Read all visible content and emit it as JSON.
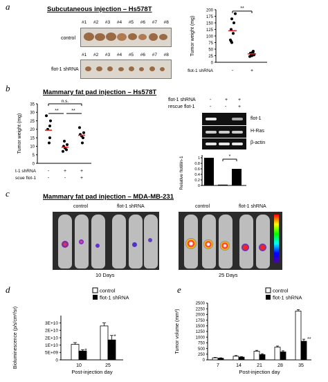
{
  "panel_a": {
    "letter": "a",
    "title": "Subcutaneous injection – Hs578T",
    "tray_numbers": [
      "#1",
      "#2",
      "#3",
      "#4",
      "#5",
      "#6",
      "#7",
      "#8"
    ],
    "row1_label": "control",
    "row2_label": "flot-1 shRNA",
    "chart": {
      "ylabel": "Tumor weight (mg)",
      "yticks": [
        "0",
        "25",
        "50",
        "75",
        "100",
        "125",
        "150",
        "175",
        "200"
      ],
      "xrow_label": "flot-1 shRNA",
      "xmarks": [
        "-",
        "+"
      ],
      "sig": "**"
    }
  },
  "panel_b": {
    "letter": "b",
    "title": "Mammary fat pad injection – Hs578T",
    "chart": {
      "ylabel": "Tumor weight (mg)",
      "yticks": [
        "0",
        "5",
        "10",
        "15",
        "20",
        "25",
        "30",
        "35"
      ],
      "row1_label": "flot-1 shRNA",
      "row2_label": "rescue flot-1",
      "row1_marks": [
        "-",
        "+",
        "+"
      ],
      "row2_marks": [
        "-",
        "-",
        "+"
      ],
      "ns": "n.s.",
      "sig1": "**",
      "sig2": "**"
    },
    "blot": {
      "row1_label": "flot-1 shRNA",
      "row2_label": "rescue flot-1",
      "row1_marks": [
        "-",
        "+",
        "+"
      ],
      "row2_marks": [
        "-",
        "-",
        "+"
      ],
      "bands": [
        "flot-1",
        "H-Ras",
        "β-actin"
      ],
      "ylabel": "Relative flotillin-1",
      "yticks": [
        "0",
        "0.2",
        "0.4",
        "0.6",
        "0.8",
        "1"
      ],
      "sig": "*"
    }
  },
  "panel_c": {
    "letter": "c",
    "title": "Mammary fat pad injection – MDA-MB-231",
    "left_label_control": "control",
    "left_label_shrna": "flot-1 shRNA",
    "right_label_control": "control",
    "right_label_shrna": "flot-1 shRNA",
    "left_caption": "10 Days",
    "right_caption": "25 Days"
  },
  "panel_d": {
    "letter": "d",
    "legend": [
      "control",
      "flot-1 shRNA"
    ],
    "ylabel": "Bioluminescence (p/s/cm²/sr)",
    "yticks": [
      "0",
      "5E+09",
      "1E+10",
      "2E+10",
      "2E+10",
      "3E+10"
    ],
    "xticks": [
      "10",
      "25"
    ],
    "xlabel": "Post-injection day",
    "stars": [
      "*",
      "*"
    ]
  },
  "panel_e": {
    "letter": "e",
    "legend": [
      "control",
      "flot-1 shRNA"
    ],
    "ylabel": "Tumor volume (mm³)",
    "yticks": [
      "0",
      "250",
      "500",
      "750",
      "1000",
      "1250",
      "1500",
      "1750",
      "2000",
      "2250",
      "2500"
    ],
    "xticks": [
      "7",
      "14",
      "21",
      "28",
      "35"
    ],
    "xlabel": "Post-injection day",
    "stars": [
      "**"
    ]
  },
  "chart_data": [
    {
      "type": "scatter",
      "title": "",
      "ylabel": "Tumor weight (mg)",
      "ylim": [
        0,
        200
      ],
      "categories": [
        "-",
        "+"
      ],
      "series": [
        {
          "name": "",
          "points": [
            [
              1,
              185
            ],
            [
              1,
              165
            ],
            [
              1,
              150
            ],
            [
              1,
              125
            ],
            [
              1,
              110
            ],
            [
              1,
              85
            ],
            [
              1,
              80
            ],
            [
              1,
              75
            ],
            [
              2,
              42
            ],
            [
              2,
              38
            ],
            [
              2,
              35
            ],
            [
              2,
              33
            ],
            [
              2,
              30
            ],
            [
              2,
              28
            ],
            [
              2,
              25
            ],
            [
              2,
              22
            ]
          ],
          "means": [
            120,
            32
          ]
        }
      ]
    },
    {
      "type": "scatter",
      "title": "",
      "ylabel": "Tumor weight (mg)",
      "ylim": [
        0,
        35
      ],
      "categories": [
        "1",
        "2",
        "3"
      ],
      "series": [
        {
          "name": "",
          "points": [
            [
              1,
              28
            ],
            [
              1,
              25
            ],
            [
              1,
              22
            ],
            [
              1,
              20
            ],
            [
              1,
              15
            ],
            [
              1,
              12
            ],
            [
              2,
              13
            ],
            [
              2,
              11
            ],
            [
              2,
              10
            ],
            [
              2,
              9
            ],
            [
              2,
              8
            ],
            [
              2,
              7
            ],
            [
              3,
              21
            ],
            [
              3,
              18
            ],
            [
              3,
              17
            ],
            [
              3,
              16
            ],
            [
              3,
              15
            ],
            [
              3,
              12
            ]
          ],
          "means": [
            19.5,
            9.5,
            16.5
          ]
        }
      ]
    },
    {
      "type": "bar",
      "title": "",
      "ylabel": "Relative flotillin-1",
      "ylim": [
        0,
        1.1
      ],
      "categories": [
        "1",
        "2",
        "3"
      ],
      "values": [
        1.0,
        0.03,
        0.6
      ]
    },
    {
      "type": "bar",
      "title": "",
      "ylabel": "Bioluminescence (p/s/cm²/sr)",
      "xlabel": "Post-injection day",
      "ylim": [
        0,
        30000000000
      ],
      "categories": [
        "10",
        "25"
      ],
      "series": [
        {
          "name": "control",
          "values": [
            10500000000,
            23000000000
          ],
          "errors": [
            1200000000,
            2000000000
          ]
        },
        {
          "name": "flot-1 shRNA",
          "values": [
            6000000000,
            13500000000
          ],
          "errors": [
            900000000,
            3000000000
          ]
        }
      ]
    },
    {
      "type": "bar",
      "title": "",
      "ylabel": "Tumor volume (mm³)",
      "xlabel": "Post-injection day",
      "ylim": [
        0,
        2500
      ],
      "categories": [
        "7",
        "14",
        "21",
        "28",
        "35"
      ],
      "series": [
        {
          "name": "control",
          "values": [
            90,
            160,
            380,
            560,
            2150
          ],
          "errors": [
            20,
            30,
            40,
            50,
            60
          ]
        },
        {
          "name": "flot-1 shRNA",
          "values": [
            70,
            120,
            230,
            350,
            820
          ],
          "errors": [
            20,
            25,
            40,
            50,
            90
          ]
        }
      ]
    }
  ]
}
